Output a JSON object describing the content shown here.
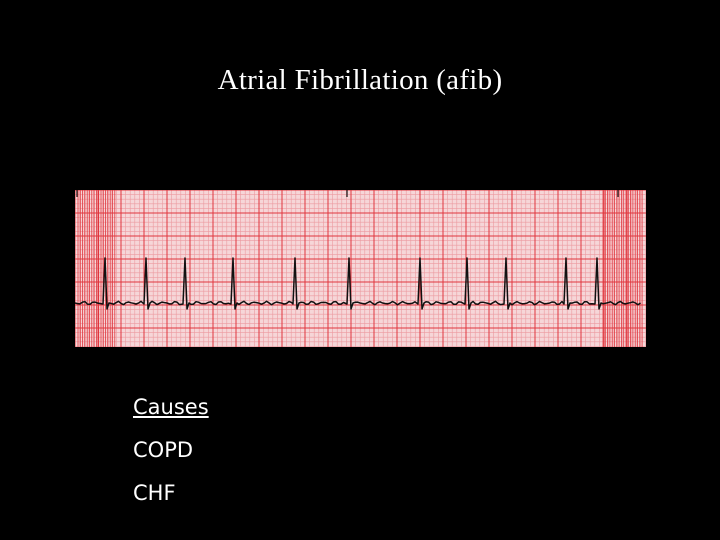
{
  "slide": {
    "title": "Atrial Fibrillation (afib)",
    "causes_heading": "Causes",
    "causes": [
      "COPD",
      "CHF"
    ]
  },
  "ecg": {
    "grid_background": "#f6d6d8",
    "grid_minor_color": "#ec9aa0",
    "grid_major_color": "#e0363e",
    "trace_color": "#111111"
  }
}
